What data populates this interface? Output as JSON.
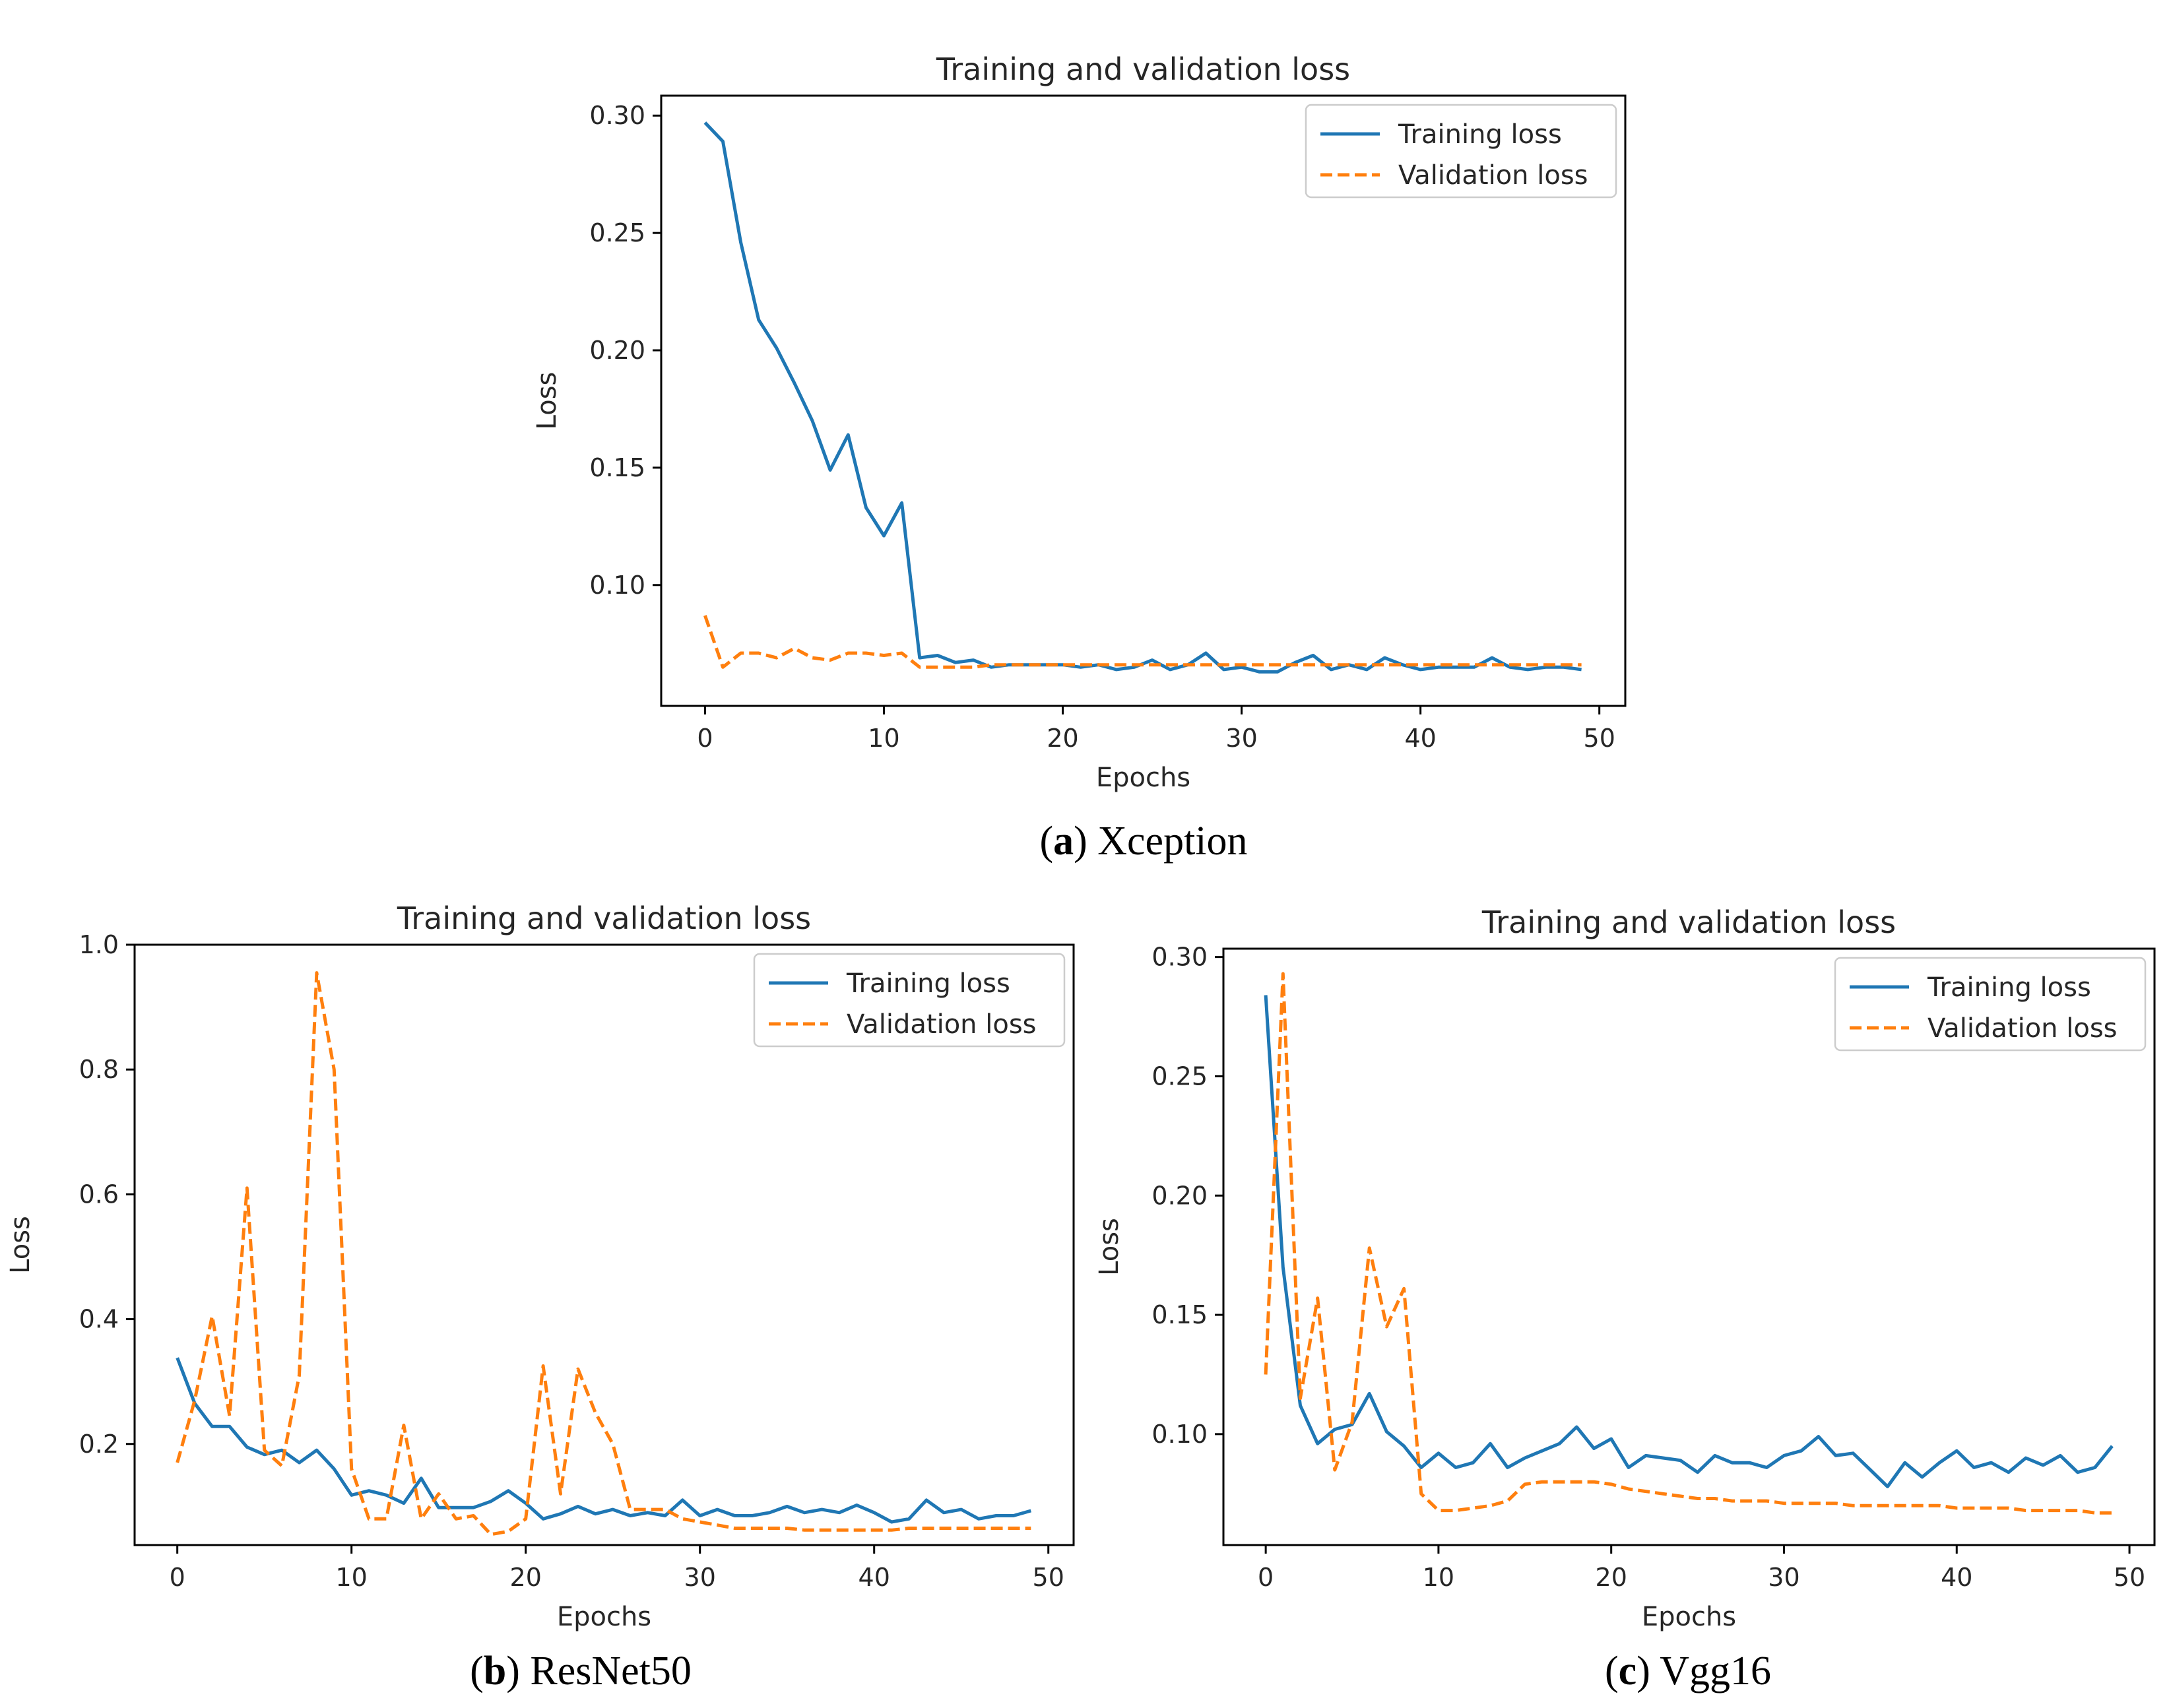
{
  "figure": {
    "captions": [
      {
        "letter": "a",
        "text": " Xception"
      },
      {
        "letter": "b",
        "text": " ResNet50"
      },
      {
        "letter": "c",
        "text": " Vgg16"
      }
    ]
  },
  "colors": {
    "training": "#1f77b4",
    "validation": "#ff7f0e"
  },
  "chart_data": [
    {
      "type": "line",
      "title": "Training and validation loss",
      "xlabel": "Epochs",
      "ylabel": "Loss",
      "xlim": [
        -2.45,
        51.45
      ],
      "ylim": [
        0.0485,
        0.3085
      ],
      "xticks": [
        0,
        10,
        20,
        30,
        40,
        50
      ],
      "yticks": [
        0.1,
        0.15,
        0.2,
        0.25,
        0.3
      ],
      "ytick_labels": [
        "0.10",
        "0.15",
        "0.20",
        "0.25",
        "0.30"
      ],
      "legend_position": "upper right",
      "series": [
        {
          "name": "Training loss",
          "style": "solid",
          "values": [
            0.297,
            0.289,
            0.246,
            0.213,
            0.201,
            0.186,
            0.17,
            0.149,
            0.164,
            0.133,
            0.121,
            0.135,
            0.069,
            0.07,
            0.067,
            0.068,
            0.065,
            0.066,
            0.066,
            0.066,
            0.066,
            0.065,
            0.066,
            0.064,
            0.065,
            0.068,
            0.064,
            0.066,
            0.071,
            0.064,
            0.065,
            0.063,
            0.063,
            0.067,
            0.07,
            0.064,
            0.066,
            0.064,
            0.069,
            0.066,
            0.064,
            0.065,
            0.065,
            0.065,
            0.069,
            0.065,
            0.064,
            0.065,
            0.065,
            0.064
          ]
        },
        {
          "name": "Validation loss",
          "style": "dashed",
          "values": [
            0.087,
            0.065,
            0.071,
            0.071,
            0.069,
            0.073,
            0.069,
            0.068,
            0.071,
            0.071,
            0.07,
            0.071,
            0.065,
            0.065,
            0.065,
            0.065,
            0.066,
            0.066,
            0.066,
            0.066,
            0.066,
            0.066,
            0.066,
            0.066,
            0.066,
            0.066,
            0.066,
            0.066,
            0.066,
            0.066,
            0.066,
            0.066,
            0.066,
            0.066,
            0.066,
            0.066,
            0.066,
            0.066,
            0.066,
            0.066,
            0.066,
            0.066,
            0.066,
            0.066,
            0.066,
            0.066,
            0.066,
            0.066,
            0.066,
            0.066
          ]
        }
      ]
    },
    {
      "type": "line",
      "title": "Training and validation loss",
      "xlabel": "Epochs",
      "ylabel": "Loss",
      "xlim": [
        -2.45,
        51.45
      ],
      "ylim": [
        0.038,
        1.0
      ],
      "xticks": [
        0,
        10,
        20,
        30,
        40,
        50
      ],
      "yticks": [
        0.2,
        0.4,
        0.6,
        0.8,
        1.0
      ],
      "ytick_labels": [
        "0.2",
        "0.4",
        "0.6",
        "0.8",
        "1.0"
      ],
      "legend_position": "upper right",
      "series": [
        {
          "name": "Training loss",
          "style": "solid",
          "values": [
            0.338,
            0.265,
            0.228,
            0.228,
            0.195,
            0.183,
            0.19,
            0.17,
            0.19,
            0.16,
            0.118,
            0.125,
            0.118,
            0.105,
            0.145,
            0.098,
            0.098,
            0.098,
            0.108,
            0.125,
            0.105,
            0.08,
            0.088,
            0.1,
            0.088,
            0.095,
            0.085,
            0.09,
            0.085,
            0.11,
            0.085,
            0.095,
            0.085,
            0.085,
            0.09,
            0.1,
            0.09,
            0.095,
            0.09,
            0.102,
            0.09,
            0.075,
            0.08,
            0.11,
            0.09,
            0.095,
            0.08,
            0.085,
            0.085,
            0.093
          ]
        },
        {
          "name": "Validation loss",
          "style": "dashed",
          "values": [
            0.17,
            0.27,
            0.405,
            0.245,
            0.61,
            0.19,
            0.165,
            0.31,
            0.955,
            0.8,
            0.16,
            0.08,
            0.08,
            0.23,
            0.08,
            0.12,
            0.08,
            0.085,
            0.055,
            0.06,
            0.08,
            0.325,
            0.12,
            0.32,
            0.25,
            0.2,
            0.095,
            0.095,
            0.095,
            0.08,
            0.075,
            0.07,
            0.065,
            0.065,
            0.065,
            0.065,
            0.062,
            0.062,
            0.062,
            0.062,
            0.062,
            0.062,
            0.065,
            0.065,
            0.065,
            0.065,
            0.065,
            0.065,
            0.065,
            0.065
          ]
        }
      ]
    },
    {
      "type": "line",
      "title": "Training and validation loss",
      "xlabel": "Epochs",
      "ylabel": "Loss",
      "xlim": [
        -2.45,
        51.45
      ],
      "ylim": [
        0.0535,
        0.3035
      ],
      "xticks": [
        0,
        10,
        20,
        30,
        40,
        50
      ],
      "yticks": [
        0.1,
        0.15,
        0.2,
        0.25,
        0.3
      ],
      "ytick_labels": [
        "0.10",
        "0.15",
        "0.20",
        "0.25",
        "0.30"
      ],
      "legend_position": "upper right",
      "series": [
        {
          "name": "Training loss",
          "style": "solid",
          "values": [
            0.284,
            0.17,
            0.112,
            0.096,
            0.102,
            0.104,
            0.117,
            0.101,
            0.095,
            0.086,
            0.092,
            0.086,
            0.088,
            0.096,
            0.086,
            0.09,
            0.093,
            0.096,
            0.103,
            0.094,
            0.098,
            0.086,
            0.091,
            0.09,
            0.089,
            0.084,
            0.091,
            0.088,
            0.088,
            0.086,
            0.091,
            0.093,
            0.099,
            0.091,
            0.092,
            0.085,
            0.078,
            0.088,
            0.082,
            0.088,
            0.093,
            0.086,
            0.088,
            0.084,
            0.09,
            0.087,
            0.091,
            0.084,
            0.086,
            0.095
          ]
        },
        {
          "name": "Validation loss",
          "style": "dashed",
          "values": [
            0.125,
            0.293,
            0.115,
            0.157,
            0.085,
            0.105,
            0.178,
            0.145,
            0.161,
            0.075,
            0.068,
            0.068,
            0.069,
            0.07,
            0.072,
            0.079,
            0.08,
            0.08,
            0.08,
            0.08,
            0.079,
            0.077,
            0.076,
            0.075,
            0.074,
            0.073,
            0.073,
            0.072,
            0.072,
            0.072,
            0.071,
            0.071,
            0.071,
            0.071,
            0.07,
            0.07,
            0.07,
            0.07,
            0.07,
            0.07,
            0.069,
            0.069,
            0.069,
            0.069,
            0.068,
            0.068,
            0.068,
            0.068,
            0.067,
            0.067
          ]
        }
      ]
    }
  ]
}
